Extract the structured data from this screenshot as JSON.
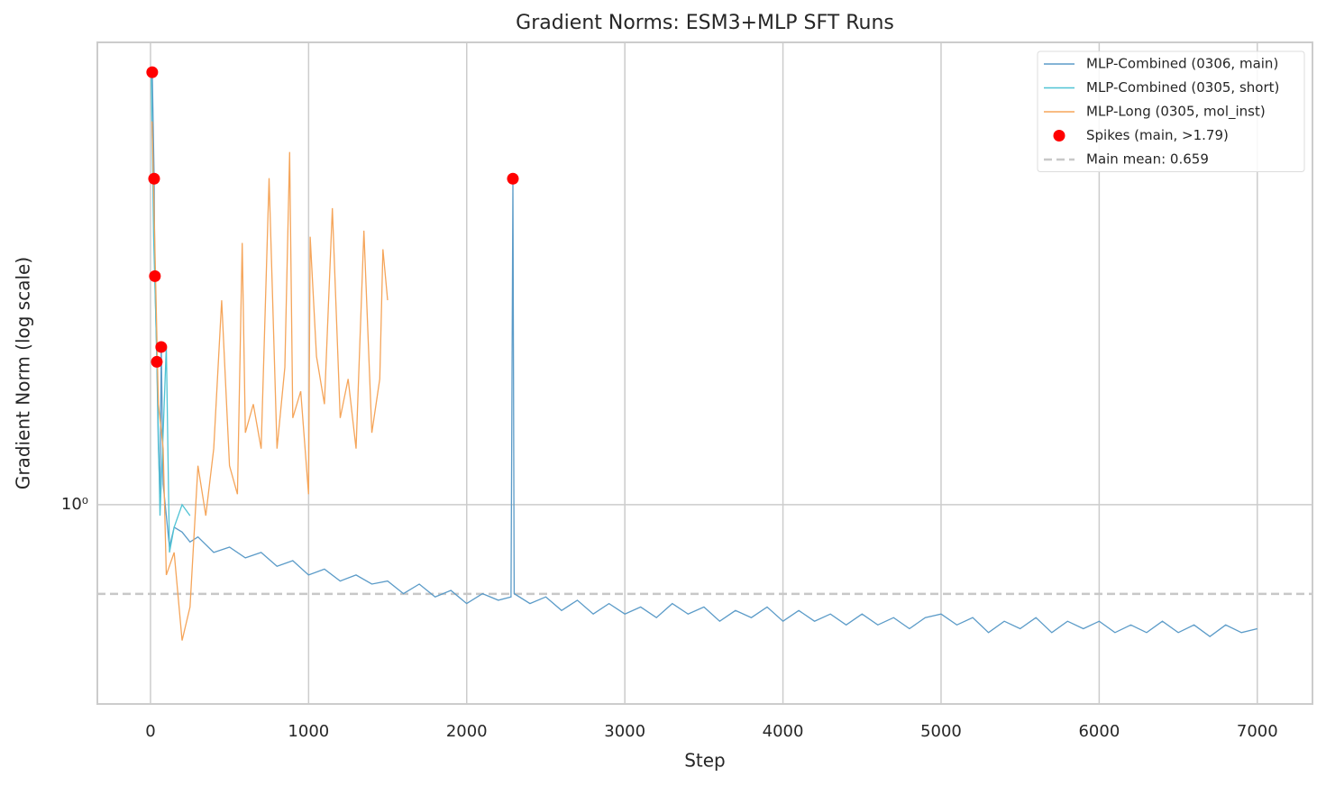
{
  "chart_data": {
    "type": "line",
    "title": "Gradient Norms: ESM3+MLP SFT Runs",
    "xlabel": "Step",
    "ylabel": "Gradient Norm (log scale)",
    "xlim": [
      -336,
      7349
    ],
    "ylim": [
      0.394,
      8.68
    ],
    "ylog": true,
    "grid": true,
    "legend": "upper right",
    "xticks": [
      0,
      1000,
      2000,
      3000,
      4000,
      5000,
      6000,
      7000
    ],
    "yticks": [
      {
        "value": 1,
        "label": "10⁰"
      }
    ],
    "series": [
      {
        "name": "MLP-Combined (0306, main)",
        "color": "#5b9bc8",
        "x": [
          11,
          23,
          28,
          40,
          50,
          60,
          68,
          80,
          100,
          120,
          150,
          200,
          250,
          300,
          400,
          500,
          600,
          700,
          800,
          900,
          1000,
          1100,
          1200,
          1300,
          1400,
          1500,
          1600,
          1700,
          1800,
          1900,
          2000,
          2100,
          2200,
          2280,
          2292,
          2300,
          2400,
          2500,
          2600,
          2700,
          2800,
          2900,
          3000,
          3100,
          3200,
          3300,
          3400,
          3500,
          3600,
          3700,
          3800,
          3900,
          4000,
          4100,
          4200,
          4300,
          4400,
          4500,
          4600,
          4700,
          4800,
          4900,
          5000,
          5100,
          5200,
          5300,
          5400,
          5500,
          5600,
          5700,
          5800,
          5900,
          6000,
          6100,
          6200,
          6300,
          6400,
          6500,
          6600,
          6700,
          6800,
          6900,
          7000
        ],
        "values": [
          7.55,
          4.59,
          2.91,
          1.95,
          1.3,
          1.05,
          2.09,
          1.1,
          0.95,
          0.82,
          0.9,
          0.88,
          0.84,
          0.86,
          0.8,
          0.82,
          0.78,
          0.8,
          0.75,
          0.77,
          0.72,
          0.74,
          0.7,
          0.72,
          0.69,
          0.7,
          0.66,
          0.69,
          0.65,
          0.67,
          0.63,
          0.66,
          0.64,
          0.65,
          4.59,
          0.66,
          0.63,
          0.65,
          0.61,
          0.64,
          0.6,
          0.63,
          0.6,
          0.62,
          0.59,
          0.63,
          0.6,
          0.62,
          0.58,
          0.61,
          0.59,
          0.62,
          0.58,
          0.61,
          0.58,
          0.6,
          0.57,
          0.6,
          0.57,
          0.59,
          0.56,
          0.59,
          0.6,
          0.57,
          0.59,
          0.55,
          0.58,
          0.56,
          0.59,
          0.55,
          0.58,
          0.56,
          0.58,
          0.55,
          0.57,
          0.55,
          0.58,
          0.55,
          0.57,
          0.54,
          0.57,
          0.55,
          0.56
        ]
      },
      {
        "name": "MLP-Combined (0305, short)",
        "color": "#4fc3d4",
        "x": [
          5,
          20,
          40,
          60,
          80,
          100,
          120,
          150,
          200,
          250
        ],
        "values": [
          7.55,
          3.5,
          2.0,
          0.95,
          1.4,
          2.1,
          0.8,
          0.9,
          1.0,
          0.95
        ]
      },
      {
        "name": "MLP-Long (0305, mol_inst)",
        "color": "#f5a55a",
        "x": [
          10,
          50,
          80,
          100,
          150,
          200,
          250,
          300,
          350,
          400,
          450,
          500,
          550,
          580,
          600,
          650,
          700,
          750,
          800,
          850,
          880,
          900,
          950,
          1000,
          1010,
          1050,
          1100,
          1150,
          1200,
          1250,
          1300,
          1350,
          1400,
          1450,
          1470,
          1500
        ],
        "values": [
          6.0,
          1.6,
          1.3,
          0.72,
          0.8,
          0.53,
          0.62,
          1.2,
          0.95,
          1.3,
          2.6,
          1.2,
          1.05,
          3.4,
          1.4,
          1.6,
          1.3,
          4.6,
          1.3,
          1.9,
          5.2,
          1.5,
          1.7,
          1.05,
          3.5,
          2.0,
          1.6,
          4.0,
          1.5,
          1.8,
          1.3,
          3.6,
          1.4,
          1.8,
          3.3,
          2.6
        ]
      }
    ],
    "spikes": {
      "name": "Spikes (main, >1.79)",
      "color": "#ff0000",
      "x": [
        11,
        23,
        28,
        40,
        68,
        2292
      ],
      "values": [
        7.55,
        4.59,
        2.91,
        1.95,
        2.09,
        4.59
      ]
    },
    "mean_line": {
      "name": "Main mean: 0.659",
      "value": 0.659,
      "color": "#c8c8c8"
    }
  }
}
